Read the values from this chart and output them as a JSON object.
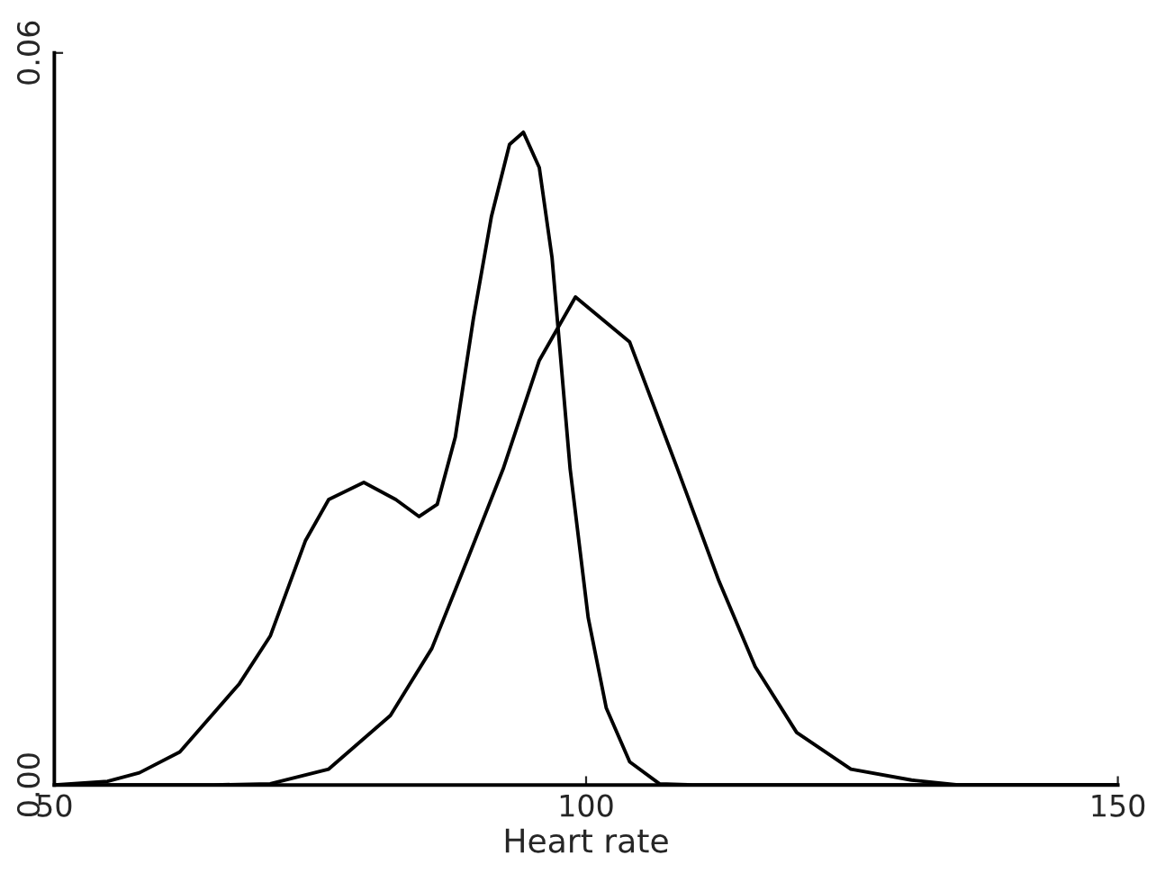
{
  "chart_data": {
    "type": "line",
    "xlabel": "Heart rate",
    "xlim": [
      50,
      150
    ],
    "xticks": [
      50,
      100,
      150
    ],
    "ylim": [
      0,
      0.06
    ],
    "yticks": [
      {
        "value": 0,
        "label": "0.00"
      },
      {
        "value": 0.06,
        "label": "0.06"
      }
    ],
    "grid": false,
    "legend": false,
    "marker": "none",
    "line_style": "solid",
    "series": [
      {
        "color": "#000000",
        "x": [
          50,
          55,
          58,
          61.8,
          67.4,
          70.3,
          73.6,
          75.8,
          79.1,
          82.1,
          84.3,
          86.0,
          87.7,
          89.4,
          91.1,
          92.8,
          94.1,
          95.6,
          96.8,
          98.5,
          100.2,
          101.9,
          104.1,
          106.9,
          110,
          150
        ],
        "values": [
          0,
          0.0003,
          0.001,
          0.0027,
          0.0083,
          0.0122,
          0.02,
          0.0234,
          0.0248,
          0.0234,
          0.022,
          0.023,
          0.0285,
          0.0382,
          0.0466,
          0.0525,
          0.0535,
          0.0506,
          0.0432,
          0.0259,
          0.0137,
          0.0063,
          0.0019,
          0.0001,
          0,
          0
        ]
      },
      {
        "color": "#000000",
        "x": [
          50,
          65,
          70.3,
          75.8,
          81.6,
          85.5,
          88.9,
          92.2,
          95.6,
          99.0,
          104.1,
          108.6,
          112.5,
          115.9,
          119.8,
          124.9,
          130.6,
          135,
          150
        ],
        "values": [
          0,
          0,
          0.0001,
          0.0013,
          0.0057,
          0.0112,
          0.0186,
          0.0259,
          0.0348,
          0.04,
          0.0363,
          0.0259,
          0.0167,
          0.0097,
          0.0043,
          0.0013,
          0.0004,
          0,
          0
        ]
      }
    ]
  }
}
